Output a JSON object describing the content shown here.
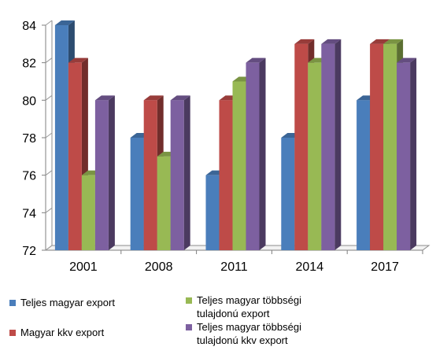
{
  "chart_data": {
    "type": "bar",
    "title": "",
    "xlabel": "",
    "ylabel": "",
    "ylim": [
      72,
      84
    ],
    "yticks": [
      72,
      74,
      76,
      78,
      80,
      82,
      84
    ],
    "grid": false,
    "legend_position": "bottom",
    "categories": [
      "2001",
      "2008",
      "2011",
      "2014",
      "2017"
    ],
    "series": [
      {
        "name": "Teljes magyar export",
        "color": "#4a7ebb",
        "values": [
          84,
          78,
          76,
          78,
          80
        ]
      },
      {
        "name": "Magyar kkv export",
        "color": "#be4b48",
        "values": [
          82,
          80,
          80,
          83,
          83
        ]
      },
      {
        "name": "Teljes magyar többségi tulajdonú export",
        "color": "#98b954",
        "values": [
          76,
          77,
          81,
          82,
          83
        ]
      },
      {
        "name": "Teljes magyar többségi tulajdonú kkv export",
        "color": "#7d60a0",
        "values": [
          80,
          80,
          82,
          83,
          82
        ]
      }
    ]
  },
  "legend": {
    "items": [
      {
        "label": "Teljes magyar export"
      },
      {
        "label": "Magyar kkv export"
      },
      {
        "label": "Teljes magyar többségi\ntulajdonú export"
      },
      {
        "label": "Teljes magyar többségi\ntulajdonú kkv export"
      }
    ]
  }
}
